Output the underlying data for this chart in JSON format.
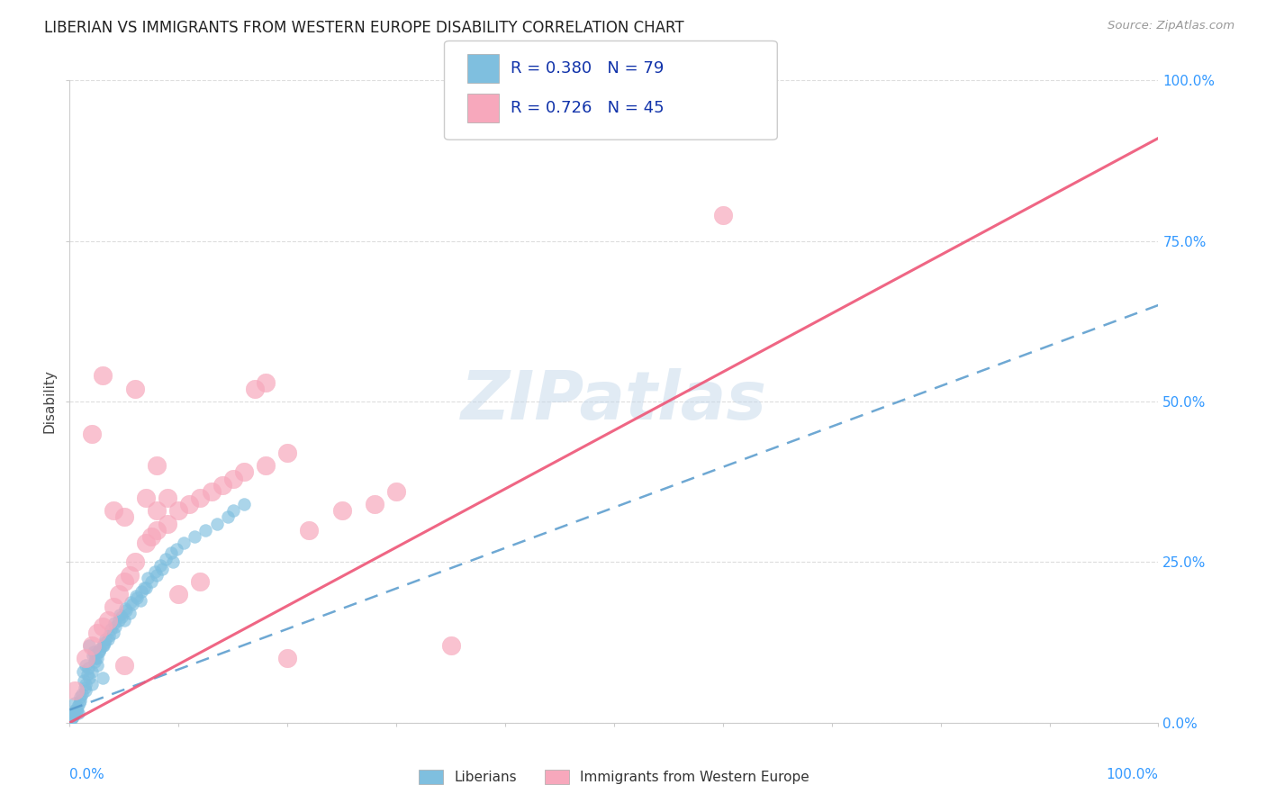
{
  "title": "LIBERIAN VS IMMIGRANTS FROM WESTERN EUROPE DISABILITY CORRELATION CHART",
  "source_text": "Source: ZipAtlas.com",
  "ylabel": "Disability",
  "watermark": "ZIPatlas",
  "legend_r1": "R = 0.380",
  "legend_n1": "N = 79",
  "legend_r2": "R = 0.726",
  "legend_n2": "N = 45",
  "liberian_color": "#7fbfdf",
  "western_europe_color": "#f7a8bc",
  "liberian_line_color": "#5599cc",
  "western_europe_line_color": "#ee5577",
  "liberian_points": [
    [
      0.5,
      2.0
    ],
    [
      1.0,
      3.5
    ],
    [
      1.5,
      5.0
    ],
    [
      2.0,
      6.0
    ],
    [
      0.8,
      1.5
    ],
    [
      1.2,
      8.0
    ],
    [
      2.5,
      10.0
    ],
    [
      3.0,
      7.0
    ],
    [
      1.8,
      12.0
    ],
    [
      4.0,
      14.0
    ],
    [
      5.0,
      16.0
    ],
    [
      0.3,
      1.0
    ],
    [
      0.7,
      2.5
    ],
    [
      1.5,
      9.0
    ],
    [
      2.2,
      11.0
    ],
    [
      3.5,
      13.0
    ],
    [
      0.4,
      1.2
    ],
    [
      0.6,
      1.8
    ],
    [
      1.1,
      4.5
    ],
    [
      1.3,
      6.5
    ],
    [
      1.6,
      7.5
    ],
    [
      2.3,
      9.5
    ],
    [
      2.8,
      11.5
    ],
    [
      3.2,
      12.5
    ],
    [
      3.8,
      14.5
    ],
    [
      4.2,
      15.0
    ],
    [
      4.8,
      16.5
    ],
    [
      5.2,
      17.5
    ],
    [
      5.8,
      18.5
    ],
    [
      6.2,
      19.5
    ],
    [
      6.8,
      21.0
    ],
    [
      7.5,
      22.0
    ],
    [
      8.5,
      24.0
    ],
    [
      9.5,
      25.0
    ],
    [
      0.2,
      0.8
    ],
    [
      0.9,
      3.0
    ],
    [
      1.4,
      5.5
    ],
    [
      1.7,
      8.5
    ],
    [
      2.1,
      10.5
    ],
    [
      2.6,
      11.0
    ],
    [
      3.1,
      12.0
    ],
    [
      3.6,
      13.5
    ],
    [
      4.1,
      15.5
    ],
    [
      4.6,
      16.8
    ],
    [
      5.1,
      17.8
    ],
    [
      5.6,
      18.8
    ],
    [
      6.1,
      19.8
    ],
    [
      6.6,
      20.5
    ],
    [
      7.2,
      22.5
    ],
    [
      7.8,
      23.5
    ],
    [
      8.3,
      24.5
    ],
    [
      8.8,
      25.5
    ],
    [
      9.3,
      26.5
    ],
    [
      9.8,
      27.0
    ],
    [
      10.5,
      28.0
    ],
    [
      11.5,
      29.0
    ],
    [
      12.5,
      30.0
    ],
    [
      13.5,
      31.0
    ],
    [
      14.5,
      32.0
    ],
    [
      15.0,
      33.0
    ],
    [
      16.0,
      34.0
    ],
    [
      0.1,
      0.5
    ],
    [
      2.4,
      10.0
    ],
    [
      3.3,
      13.0
    ],
    [
      2.7,
      11.0
    ],
    [
      0.3,
      1.5
    ],
    [
      0.5,
      3.0
    ],
    [
      1.0,
      4.0
    ],
    [
      1.8,
      7.0
    ],
    [
      2.0,
      8.0
    ],
    [
      0.6,
      2.0
    ],
    [
      4.5,
      16.0
    ],
    [
      5.5,
      17.0
    ],
    [
      6.5,
      19.0
    ],
    [
      7.0,
      21.0
    ],
    [
      8.0,
      23.0
    ],
    [
      3.0,
      12.0
    ],
    [
      2.5,
      9.0
    ],
    [
      1.5,
      6.0
    ]
  ],
  "western_europe_points": [
    [
      1.5,
      10.0
    ],
    [
      2.0,
      12.0
    ],
    [
      3.0,
      15.0
    ],
    [
      4.0,
      18.0
    ],
    [
      5.0,
      22.0
    ],
    [
      6.0,
      25.0
    ],
    [
      7.0,
      28.0
    ],
    [
      8.0,
      30.0
    ],
    [
      10.0,
      33.0
    ],
    [
      12.0,
      35.0
    ],
    [
      15.0,
      38.0
    ],
    [
      18.0,
      40.0
    ],
    [
      20.0,
      42.0
    ],
    [
      22.0,
      30.0
    ],
    [
      25.0,
      33.0
    ],
    [
      28.0,
      34.0
    ],
    [
      30.0,
      36.0
    ],
    [
      0.5,
      5.0
    ],
    [
      2.5,
      14.0
    ],
    [
      3.5,
      16.0
    ],
    [
      9.0,
      31.0
    ],
    [
      11.0,
      34.0
    ],
    [
      13.0,
      36.0
    ],
    [
      16.0,
      39.0
    ],
    [
      5.5,
      23.0
    ],
    [
      7.5,
      29.0
    ],
    [
      4.5,
      20.0
    ],
    [
      3.0,
      54.0
    ],
    [
      6.0,
      52.0
    ],
    [
      8.0,
      40.0
    ],
    [
      14.0,
      37.0
    ],
    [
      2.0,
      45.0
    ],
    [
      10.0,
      20.0
    ],
    [
      12.0,
      22.0
    ],
    [
      20.0,
      10.0
    ],
    [
      5.0,
      9.0
    ],
    [
      60.0,
      79.0
    ],
    [
      18.0,
      53.0
    ],
    [
      17.0,
      52.0
    ],
    [
      7.0,
      35.0
    ],
    [
      8.0,
      33.0
    ],
    [
      9.0,
      35.0
    ],
    [
      4.0,
      33.0
    ],
    [
      5.0,
      32.0
    ],
    [
      35.0,
      12.0
    ]
  ],
  "liberian_trend": [
    0.0,
    2.0,
    65.0
  ],
  "western_europe_trend": [
    0.0,
    0.0,
    91.0
  ],
  "xlim": [
    0,
    100
  ],
  "ylim": [
    0,
    100
  ],
  "y_tick_vals": [
    0,
    25,
    50,
    75,
    100
  ],
  "x_tick_vals": [
    0,
    10,
    20,
    30,
    40,
    50,
    60,
    70,
    80,
    90,
    100
  ],
  "background_color": "#ffffff",
  "grid_color": "#dddddd"
}
